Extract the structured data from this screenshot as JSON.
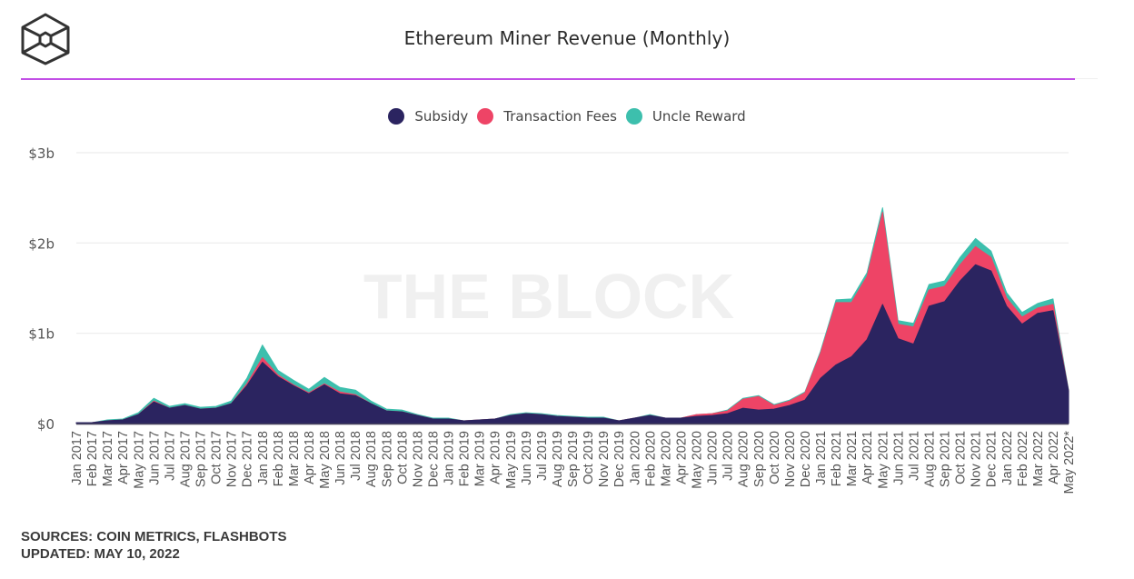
{
  "header": {
    "logo": "the-block-cube-logo",
    "title": "Ethereum Miner Revenue (Monthly)",
    "accent_color": "#c24fe6"
  },
  "watermark": "THE BLOCK",
  "footer": {
    "sources": "SOURCES: COIN METRICS, FLASHBOTS",
    "updated": "UPDATED: MAY 10, 2022"
  },
  "chart_data": {
    "type": "area",
    "stacked": true,
    "title": "Ethereum Miner Revenue (Monthly)",
    "xlabel": "",
    "ylabel": "",
    "ylim": [
      0,
      3
    ],
    "y_unit": "$ billions",
    "y_ticks": [
      {
        "value": 0,
        "label": "$0"
      },
      {
        "value": 1,
        "label": "$1b"
      },
      {
        "value": 2,
        "label": "$2b"
      },
      {
        "value": 3,
        "label": "$3b"
      }
    ],
    "grid": true,
    "legend_position": "top-center",
    "categories": [
      "Jan 2017",
      "Feb 2017",
      "Mar 2017",
      "Apr 2017",
      "May 2017",
      "Jun 2017",
      "Jul 2017",
      "Aug 2017",
      "Sep 2017",
      "Oct 2017",
      "Nov 2017",
      "Dec 2017",
      "Jan 2018",
      "Feb 2018",
      "Mar 2018",
      "Apr 2018",
      "May 2018",
      "Jun 2018",
      "Jul 2018",
      "Aug 2018",
      "Sep 2018",
      "Oct 2018",
      "Nov 2018",
      "Dec 2018",
      "Jan 2019",
      "Feb 2019",
      "Mar 2019",
      "Apr 2019",
      "May 2019",
      "Jun 2019",
      "Jul 2019",
      "Aug 2019",
      "Sep 2019",
      "Oct 2019",
      "Nov 2019",
      "Dec 2019",
      "Jan 2020",
      "Feb 2020",
      "Mar 2020",
      "Apr 2020",
      "May 2020",
      "Jun 2020",
      "Jul 2020",
      "Aug 2020",
      "Sep 2020",
      "Oct 2020",
      "Nov 2020",
      "Dec 2020",
      "Jan 2021",
      "Feb 2021",
      "Mar 2021",
      "Apr 2021",
      "May 2021",
      "Jun 2021",
      "Jul 2021",
      "Aug 2021",
      "Sep 2021",
      "Oct 2021",
      "Nov 2021",
      "Dec 2021",
      "Jan 2022",
      "Feb 2022",
      "Mar 2022",
      "Apr 2022",
      "May 2022*"
    ],
    "series": [
      {
        "name": "Subsidy",
        "color": "#2b2460",
        "values": [
          0.01,
          0.01,
          0.03,
          0.04,
          0.1,
          0.24,
          0.17,
          0.2,
          0.16,
          0.17,
          0.22,
          0.42,
          0.68,
          0.52,
          0.42,
          0.33,
          0.43,
          0.33,
          0.31,
          0.22,
          0.14,
          0.13,
          0.09,
          0.05,
          0.05,
          0.03,
          0.04,
          0.05,
          0.09,
          0.11,
          0.1,
          0.08,
          0.07,
          0.06,
          0.06,
          0.03,
          0.06,
          0.09,
          0.06,
          0.06,
          0.08,
          0.09,
          0.11,
          0.17,
          0.15,
          0.16,
          0.2,
          0.26,
          0.5,
          0.65,
          0.74,
          0.93,
          1.32,
          0.94,
          0.88,
          1.3,
          1.35,
          1.58,
          1.76,
          1.69,
          1.3,
          1.1,
          1.22,
          1.25,
          0.36
        ]
      },
      {
        "name": "Transaction Fees",
        "color": "#ee4466",
        "values": [
          0.0,
          0.0,
          0.0,
          0.0,
          0.0,
          0.01,
          0.0,
          0.0,
          0.0,
          0.0,
          0.0,
          0.02,
          0.05,
          0.02,
          0.01,
          0.01,
          0.01,
          0.02,
          0.01,
          0.0,
          0.0,
          0.0,
          0.0,
          0.0,
          0.0,
          0.0,
          0.0,
          0.0,
          0.0,
          0.0,
          0.0,
          0.0,
          0.0,
          0.0,
          0.0,
          0.0,
          0.0,
          0.0,
          0.0,
          0.0,
          0.02,
          0.02,
          0.03,
          0.1,
          0.15,
          0.04,
          0.05,
          0.08,
          0.28,
          0.69,
          0.6,
          0.7,
          1.02,
          0.16,
          0.19,
          0.18,
          0.17,
          0.18,
          0.2,
          0.15,
          0.09,
          0.08,
          0.06,
          0.07,
          0.0
        ]
      },
      {
        "name": "Uncle Reward",
        "color": "#3dbfad",
        "values": [
          0.0,
          0.0,
          0.01,
          0.01,
          0.02,
          0.03,
          0.02,
          0.02,
          0.02,
          0.02,
          0.03,
          0.06,
          0.14,
          0.05,
          0.05,
          0.04,
          0.07,
          0.05,
          0.05,
          0.03,
          0.02,
          0.02,
          0.01,
          0.01,
          0.01,
          0.0,
          0.0,
          0.0,
          0.01,
          0.01,
          0.01,
          0.01,
          0.01,
          0.01,
          0.01,
          0.0,
          0.0,
          0.01,
          0.0,
          0.0,
          0.0,
          0.0,
          0.01,
          0.01,
          0.01,
          0.01,
          0.01,
          0.01,
          0.02,
          0.03,
          0.04,
          0.04,
          0.05,
          0.04,
          0.04,
          0.06,
          0.06,
          0.08,
          0.09,
          0.07,
          0.06,
          0.05,
          0.05,
          0.06,
          0.01
        ]
      }
    ]
  }
}
